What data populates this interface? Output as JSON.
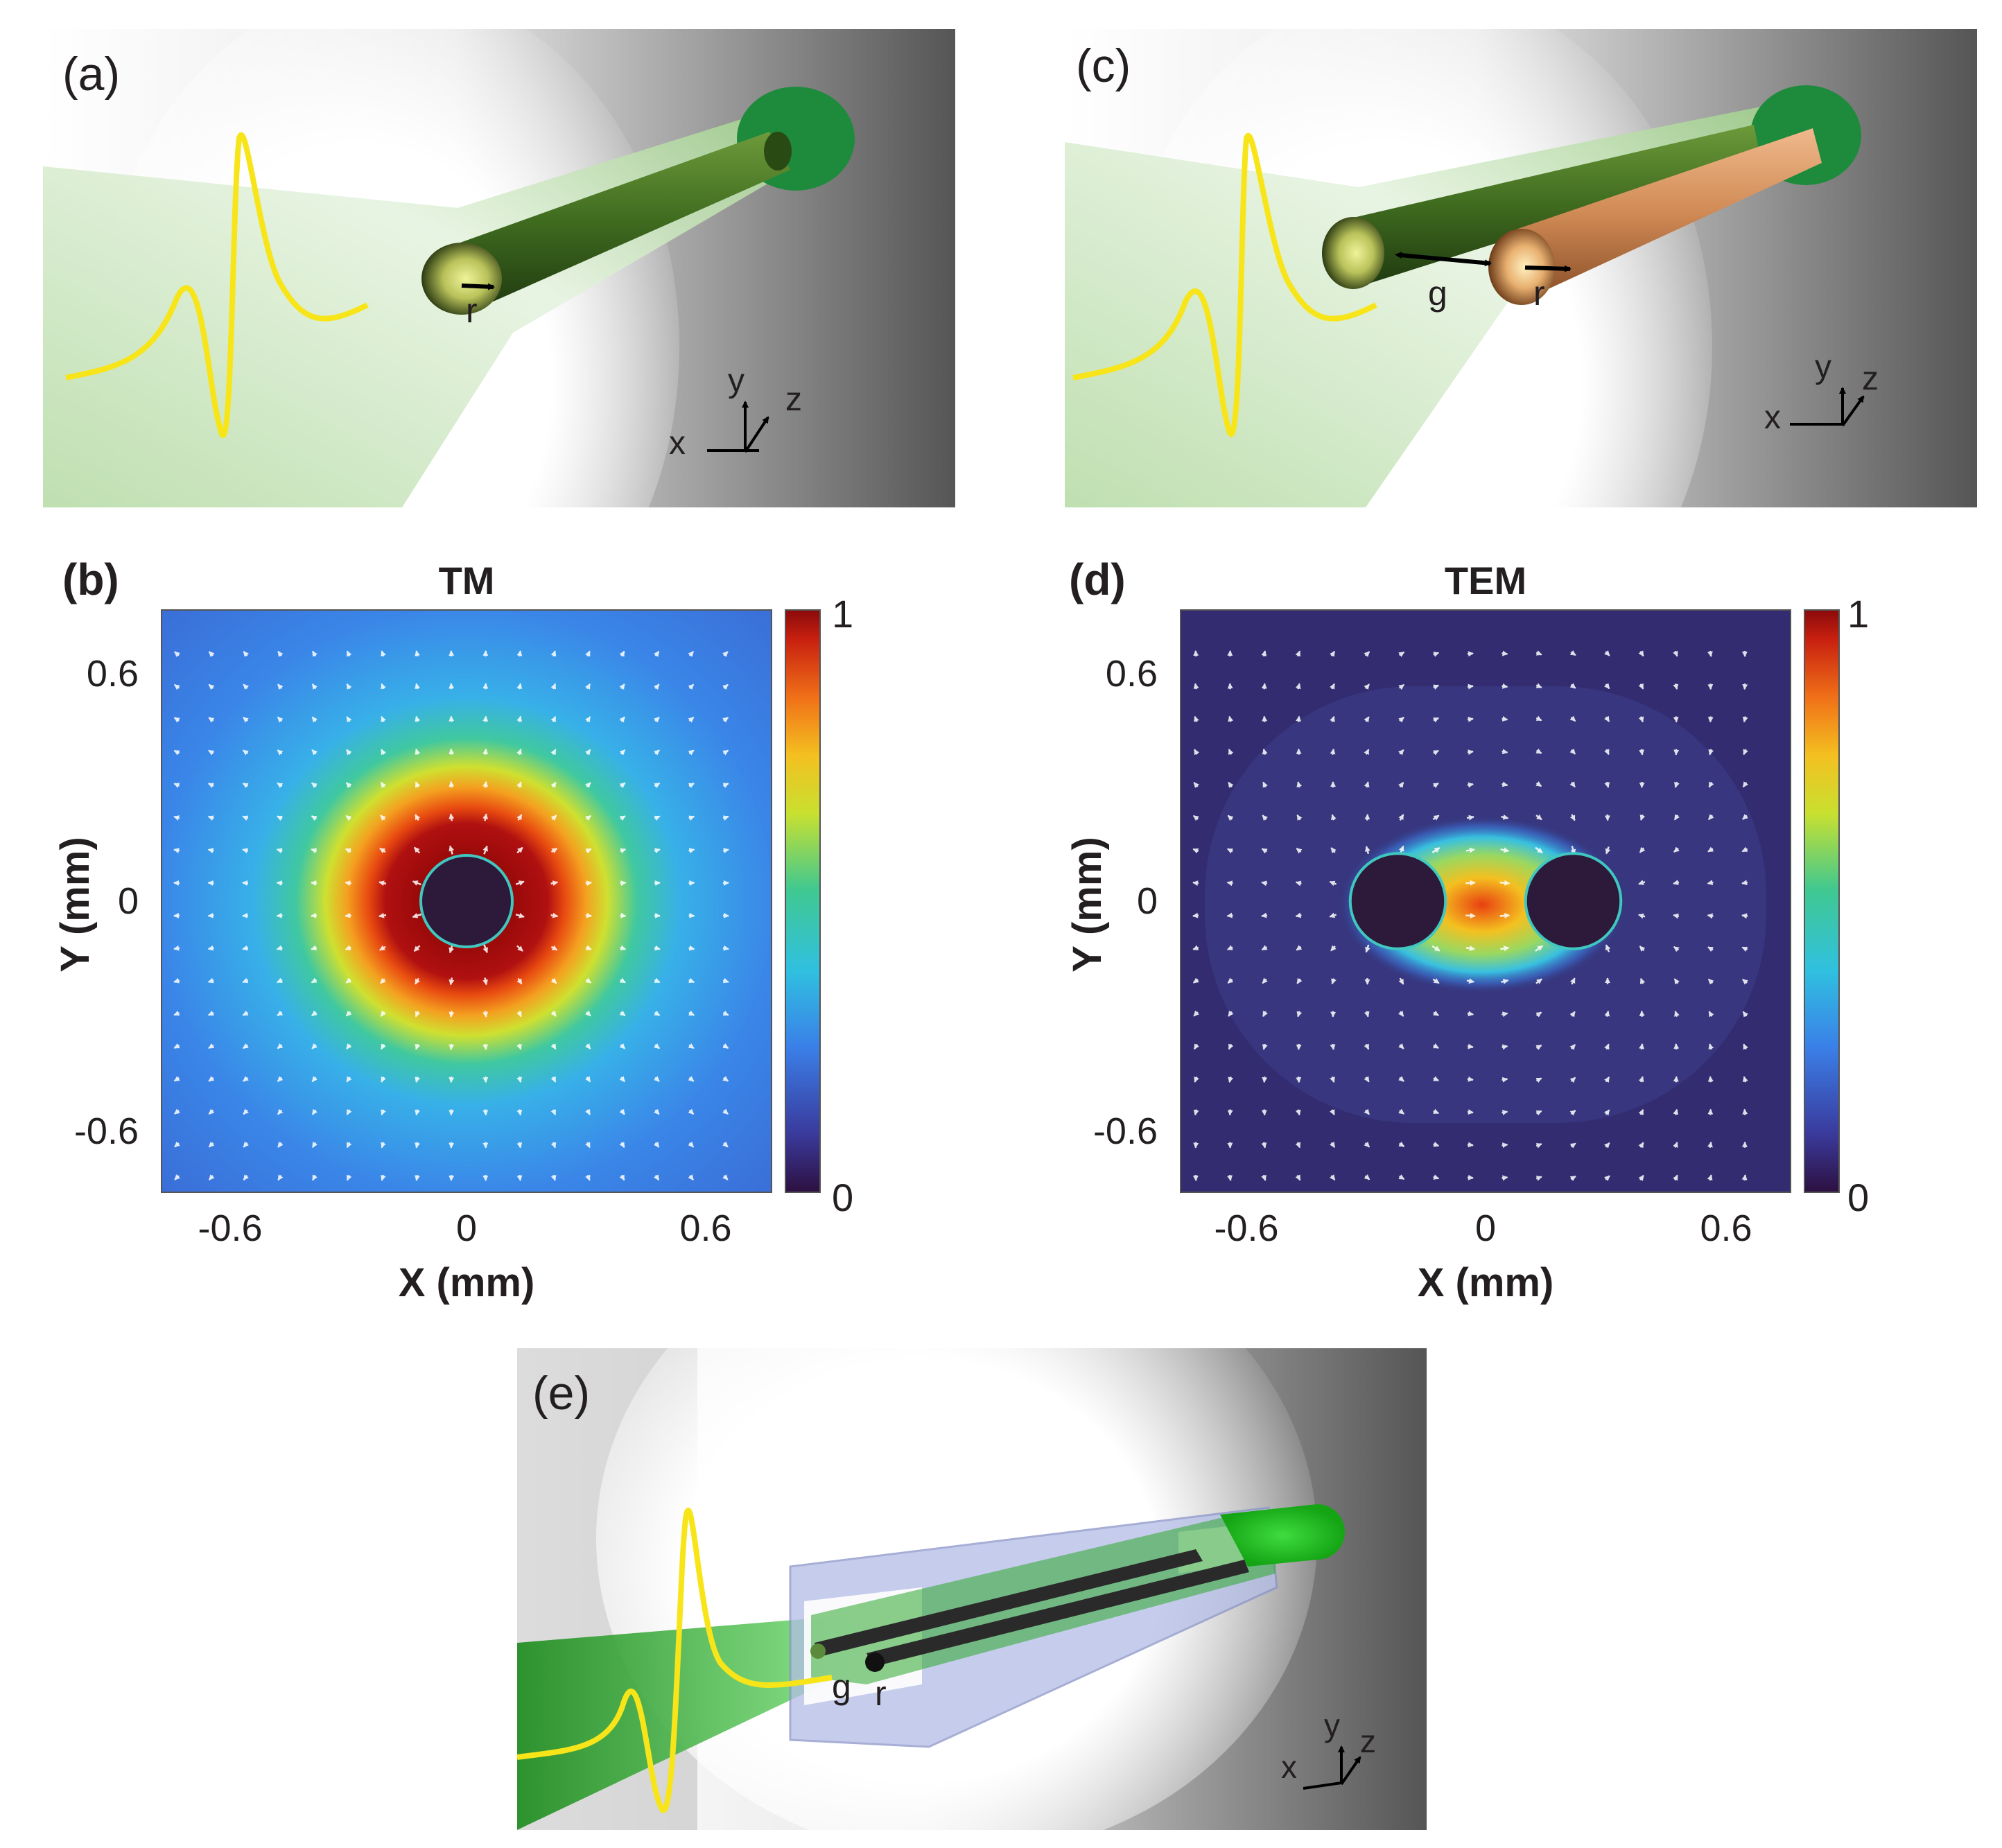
{
  "panels": {
    "a": {
      "label": "(a)",
      "r_label": "r",
      "axes": {
        "x": "x",
        "y": "y",
        "z": "z"
      }
    },
    "b": {
      "label": "(b)",
      "title": "TM",
      "xlabel": "X (mm)",
      "ylabel": "Y (mm)",
      "xticks": [
        "-0.6",
        "0",
        "0.6"
      ],
      "yticks": [
        "0.6",
        "0",
        "-0.6"
      ],
      "colorbar": {
        "max": "1",
        "min": "0"
      }
    },
    "c": {
      "label": "(c)",
      "g_label": "g",
      "r_label": "r",
      "axes": {
        "x": "x",
        "y": "y",
        "z": "z"
      }
    },
    "d": {
      "label": "(d)",
      "title": "TEM",
      "xlabel": "X (mm)",
      "ylabel": "Y (mm)",
      "xticks": [
        "-0.6",
        "0",
        "0.6"
      ],
      "yticks": [
        "0.6",
        "0",
        "-0.6"
      ],
      "colorbar": {
        "max": "1",
        "min": "0"
      }
    },
    "e": {
      "label": "(e)",
      "g_label": "g",
      "r_label": "r",
      "axes": {
        "x": "x",
        "y": "y",
        "z": "z"
      }
    }
  },
  "chart_data": [
    {
      "type": "heatmap",
      "title": "TM",
      "xlabel": "X (mm)",
      "ylabel": "Y (mm)",
      "xlim": [
        -0.8,
        0.8
      ],
      "ylim": [
        -0.8,
        0.8
      ],
      "clim": [
        0,
        1
      ],
      "xticks": [
        -0.6,
        0,
        0.6
      ],
      "yticks": [
        -0.6,
        0,
        0.6
      ],
      "conductors": [
        {
          "x": 0,
          "y": 0,
          "radius": 0.12
        }
      ]
    },
    {
      "type": "heatmap",
      "title": "TEM",
      "xlabel": "X (mm)",
      "ylabel": "Y (mm)",
      "xlim": [
        -0.8,
        0.8
      ],
      "ylim": [
        -0.8,
        0.8
      ],
      "clim": [
        0,
        1
      ],
      "xticks": [
        -0.6,
        0,
        0.6
      ],
      "yticks": [
        -0.6,
        0,
        0.6
      ],
      "conductors": [
        {
          "x": -0.23,
          "y": 0,
          "radius": 0.125
        },
        {
          "x": 0.23,
          "y": 0,
          "radius": 0.125
        }
      ]
    }
  ],
  "colors": {
    "pulse": "#f7e51a",
    "wire_green": "#3f6b1f",
    "wire_copper": "#d08a55",
    "beam_green": "#2ca02c",
    "box_blue": "#aab4de"
  }
}
